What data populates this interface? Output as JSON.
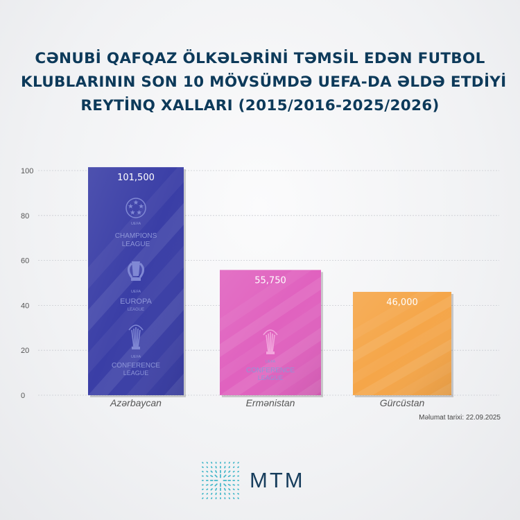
{
  "title_lines": [
    "CƏNUBİ QAFQAZ ÖLKƏLƏRİNİ TƏMSİL EDƏN FUTBOL",
    "KLUBLARININ SON 10 MÖVSÜMDƏ UEFA-DA ƏLDƏ ETDİYİ",
    "REYTİNQ XALLARI (2015/2016-2025/2026)"
  ],
  "chart_data": {
    "type": "bar",
    "title": "CƏNUBİ QAFQAZ ÖLKƏLƏRİNİ TƏMSİL EDƏN FUTBOL KLUBLARININ SON 10 MÖVSÜMDƏ UEFA-DA ƏLDƏ ETDİYİ REYTİNQ XALLARI (2015/2016-2025/2026)",
    "categories": [
      "Azərbaycan",
      "Ermənistan",
      "Gürcüstan"
    ],
    "values": [
      101.5,
      55.75,
      46.0
    ],
    "value_labels": [
      "101,500",
      "55,750",
      "46,000"
    ],
    "bar_colors": [
      "#3a3ea6",
      "#e062bf",
      "#f5a649"
    ],
    "y_ticks": [
      0,
      20,
      40,
      60,
      80,
      100
    ],
    "ylim": [
      0,
      100
    ],
    "grid": true,
    "xlabel": "",
    "ylabel": ""
  },
  "logos": {
    "ucl": [
      "UEFA",
      "CHAMPIONS",
      "LEAGUE"
    ],
    "uel": [
      "UEFA",
      "EUROPA",
      "LEAGUE"
    ],
    "uecl": [
      "UEFA",
      "CONFERENCE",
      "LEAGUE"
    ]
  },
  "source_note": "Məlumat tarixi: 22.09.2025",
  "brand": {
    "name": "MTM",
    "icon": "mtm-starburst-icon",
    "color": "#173d5c",
    "accent": "#3fb6c8"
  }
}
